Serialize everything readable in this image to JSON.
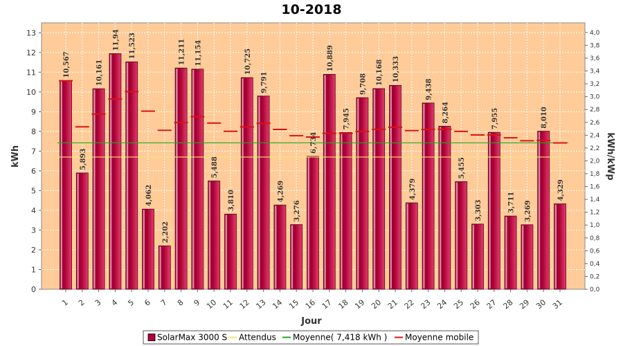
{
  "chart_data": {
    "type": "bar",
    "title": "10-2018",
    "xlabel": "Jour",
    "ylabel": "kWh",
    "y2label": "kWh/kWp",
    "ylim": [
      0,
      13.5
    ],
    "y2lim": [
      0,
      4.15
    ],
    "yticks": [
      0,
      1,
      2,
      3,
      4,
      5,
      6,
      7,
      8,
      9,
      10,
      11,
      12,
      13
    ],
    "y2ticks": [
      "0,0",
      "0,2",
      "0,4",
      "0,6",
      "0,8",
      "1,0",
      "1,2",
      "1,4",
      "1,6",
      "1,8",
      "2,0",
      "2,2",
      "2,4",
      "2,6",
      "2,8",
      "3,0",
      "3,2",
      "3,4",
      "3,6",
      "3,8",
      "4,0"
    ],
    "categories": [
      "1",
      "2",
      "3",
      "4",
      "5",
      "6",
      "7",
      "8",
      "9",
      "10",
      "11",
      "12",
      "13",
      "14",
      "15",
      "16",
      "17",
      "18",
      "19",
      "20",
      "21",
      "22",
      "23",
      "24",
      "25",
      "26",
      "27",
      "28",
      "29",
      "30",
      "31"
    ],
    "series": [
      {
        "name": "SolarMax 3000 S",
        "color": "#b0003a",
        "values": [
          10.567,
          5.893,
          10.161,
          11.94,
          11.523,
          4.062,
          2.202,
          11.211,
          11.154,
          5.488,
          3.81,
          10.725,
          9.791,
          4.269,
          3.276,
          6.734,
          10.889,
          7.945,
          9.708,
          10.168,
          10.333,
          4.379,
          9.438,
          8.264,
          5.455,
          3.303,
          7.955,
          3.711,
          3.269,
          8.01,
          4.329
        ],
        "labels": [
          "10,567",
          "5,893",
          "10,161",
          "11,94",
          "11,523",
          "4,062",
          "2,202",
          "11,211",
          "11,154",
          "5,488",
          "3,810",
          "10,725",
          "9,791",
          "4,269",
          "3,276",
          "6,734",
          "10,889",
          "7,945",
          "9,708",
          "10,168",
          "10,333",
          "4,379",
          "9,438",
          "8,264",
          "5,455",
          "3,303",
          "7,955",
          "3,711",
          "3,269",
          "8,010",
          "4,329"
        ]
      },
      {
        "name": "Attendus",
        "color": "#f5e37a",
        "type": "line",
        "value": 6.7
      },
      {
        "name": "Moyenne( 7,418 kWh )",
        "color": "#22aa22",
        "type": "line",
        "value": 7.418
      },
      {
        "name": "Moyenne mobile",
        "color": "#dd1111",
        "type": "step",
        "values": [
          10.567,
          8.23,
          8.874,
          9.64,
          10.017,
          9.024,
          8.05,
          8.445,
          8.748,
          8.422,
          8.002,
          8.229,
          8.406,
          8.1,
          7.779,
          7.713,
          7.898,
          7.901,
          7.996,
          8.105,
          8.211,
          8.037,
          8.097,
          8.104,
          7.998,
          7.818,
          7.823,
          7.676,
          7.524,
          7.542,
          7.418
        ]
      }
    ],
    "legend": {
      "position": "bottom",
      "items": [
        {
          "label": "SolarMax 3000 S",
          "color": "#b0003a",
          "kind": "box"
        },
        {
          "label": "Attendus",
          "color": "#f5e37a",
          "kind": "line"
        },
        {
          "label": "Moyenne( 7,418 kWh )",
          "color": "#22aa22",
          "kind": "line"
        },
        {
          "label": "Moyenne mobile",
          "color": "#dd1111",
          "kind": "line"
        }
      ]
    },
    "plot_background": "#ffcc99",
    "grid": true
  }
}
